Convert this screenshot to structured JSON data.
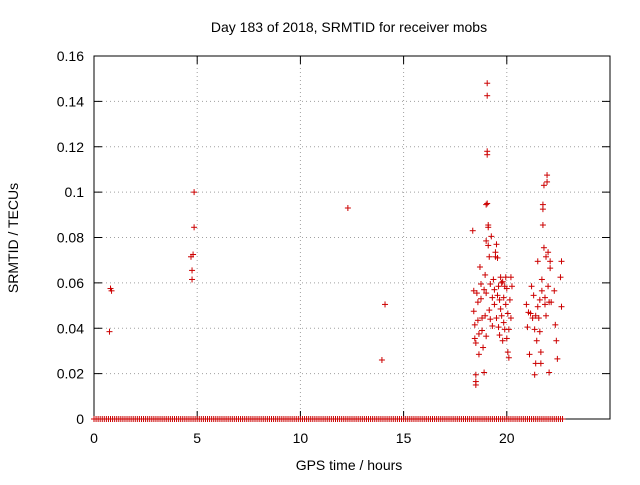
{
  "chart_data": {
    "type": "scatter",
    "title": "Day 183 of 2018, SRMTID for receiver mobs",
    "xlabel": "GPS time / hours",
    "ylabel": "SRMTID / TECUs",
    "xlim": [
      0,
      25
    ],
    "ylim": [
      0,
      0.16
    ],
    "xticks": [
      0,
      5,
      10,
      15,
      20
    ],
    "xtick_labels": [
      "0",
      "5",
      "10",
      "15",
      "20"
    ],
    "yticks": [
      0,
      0.02,
      0.04,
      0.06,
      0.08,
      0.1,
      0.12,
      0.14,
      0.16
    ],
    "ytick_labels": [
      "0",
      "0.02",
      "0.04",
      "0.06",
      "0.08",
      "0.1",
      "0.12",
      "0.14",
      "0.16"
    ],
    "grid": true,
    "marker": "+",
    "color": "#cc0000",
    "zero_baseline": {
      "y": 0,
      "x_start": 0,
      "x_end": 22.7,
      "step": 0.1
    },
    "series": [
      {
        "name": "SRMTID",
        "points": [
          [
            0.75,
            0.0385
          ],
          [
            0.8,
            0.0575
          ],
          [
            0.85,
            0.0565
          ],
          [
            4.7,
            0.0715
          ],
          [
            4.75,
            0.0655
          ],
          [
            4.75,
            0.0615
          ],
          [
            4.8,
            0.0725
          ],
          [
            4.85,
            0.1
          ],
          [
            4.85,
            0.0845
          ],
          [
            12.3,
            0.093
          ],
          [
            13.95,
            0.026
          ],
          [
            14.1,
            0.0505
          ],
          [
            18.35,
            0.083
          ],
          [
            18.4,
            0.0565
          ],
          [
            18.4,
            0.0475
          ],
          [
            18.45,
            0.0415
          ],
          [
            18.45,
            0.0355
          ],
          [
            18.5,
            0.0335
          ],
          [
            18.5,
            0.0195
          ],
          [
            18.5,
            0.0165
          ],
          [
            18.5,
            0.015
          ],
          [
            18.55,
            0.0555
          ],
          [
            18.6,
            0.0515
          ],
          [
            18.6,
            0.0435
          ],
          [
            18.65,
            0.0375
          ],
          [
            18.65,
            0.0285
          ],
          [
            18.7,
            0.067
          ],
          [
            18.75,
            0.0595
          ],
          [
            18.75,
            0.053
          ],
          [
            18.8,
            0.0445
          ],
          [
            18.8,
            0.039
          ],
          [
            18.85,
            0.0315
          ],
          [
            18.9,
            0.0205
          ],
          [
            18.9,
            0.057
          ],
          [
            18.95,
            0.0635
          ],
          [
            18.95,
            0.0455
          ],
          [
            19.0,
            0.0945
          ],
          [
            19.0,
            0.0785
          ],
          [
            19.0,
            0.0555
          ],
          [
            19.0,
            0.0365
          ],
          [
            19.05,
            0.148
          ],
          [
            19.05,
            0.1425
          ],
          [
            19.05,
            0.118
          ],
          [
            19.05,
            0.1165
          ],
          [
            19.05,
            0.095
          ],
          [
            19.1,
            0.0765
          ],
          [
            19.1,
            0.0855
          ],
          [
            19.1,
            0.0845
          ],
          [
            19.15,
            0.0715
          ],
          [
            19.15,
            0.048
          ],
          [
            19.2,
            0.044
          ],
          [
            19.2,
            0.0595
          ],
          [
            19.25,
            0.0805
          ],
          [
            19.3,
            0.0535
          ],
          [
            19.3,
            0.041
          ],
          [
            19.35,
            0.0615
          ],
          [
            19.4,
            0.057
          ],
          [
            19.4,
            0.0505
          ],
          [
            19.45,
            0.0715
          ],
          [
            19.45,
            0.0735
          ],
          [
            19.5,
            0.077
          ],
          [
            19.5,
            0.0445
          ],
          [
            19.55,
            0.0545
          ],
          [
            19.55,
            0.071
          ],
          [
            19.6,
            0.0585
          ],
          [
            19.6,
            0.0405
          ],
          [
            19.65,
            0.0525
          ],
          [
            19.65,
            0.037
          ],
          [
            19.7,
            0.0625
          ],
          [
            19.7,
            0.0485
          ],
          [
            19.75,
            0.06
          ],
          [
            19.75,
            0.0455
          ],
          [
            19.8,
            0.0345
          ],
          [
            19.8,
            0.0605
          ],
          [
            19.85,
            0.0535
          ],
          [
            19.85,
            0.0425
          ],
          [
            19.9,
            0.0585
          ],
          [
            19.9,
            0.0395
          ],
          [
            19.95,
            0.0625
          ],
          [
            19.95,
            0.0505
          ],
          [
            20.0,
            0.0575
          ],
          [
            20.0,
            0.0355
          ],
          [
            20.05,
            0.0465
          ],
          [
            20.05,
            0.0295
          ],
          [
            20.1,
            0.027
          ],
          [
            20.1,
            0.0395
          ],
          [
            20.15,
            0.0525
          ],
          [
            20.2,
            0.0625
          ],
          [
            20.2,
            0.0445
          ],
          [
            20.25,
            0.0585
          ],
          [
            20.95,
            0.0505
          ],
          [
            21.0,
            0.0405
          ],
          [
            21.05,
            0.047
          ],
          [
            21.1,
            0.0285
          ],
          [
            21.15,
            0.0465
          ],
          [
            21.2,
            0.0585
          ],
          [
            21.25,
            0.0445
          ],
          [
            21.3,
            0.0545
          ],
          [
            21.35,
            0.0195
          ],
          [
            21.35,
            0.0395
          ],
          [
            21.4,
            0.0455
          ],
          [
            21.4,
            0.0245
          ],
          [
            21.45,
            0.0345
          ],
          [
            21.5,
            0.0495
          ],
          [
            21.5,
            0.0695
          ],
          [
            21.55,
            0.0445
          ],
          [
            21.6,
            0.0525
          ],
          [
            21.6,
            0.0385
          ],
          [
            21.65,
            0.0295
          ],
          [
            21.65,
            0.0245
          ],
          [
            21.7,
            0.0615
          ],
          [
            21.7,
            0.0565
          ],
          [
            21.75,
            0.0945
          ],
          [
            21.75,
            0.0925
          ],
          [
            21.75,
            0.0855
          ],
          [
            21.8,
            0.103
          ],
          [
            21.8,
            0.0755
          ],
          [
            21.85,
            0.0505
          ],
          [
            21.85,
            0.0535
          ],
          [
            21.9,
            0.0715
          ],
          [
            21.9,
            0.0455
          ],
          [
            21.95,
            0.1075
          ],
          [
            21.95,
            0.1045
          ],
          [
            22.0,
            0.0735
          ],
          [
            22.0,
            0.0585
          ],
          [
            22.05,
            0.0515
          ],
          [
            22.05,
            0.0205
          ],
          [
            22.1,
            0.0665
          ],
          [
            22.1,
            0.0695
          ],
          [
            22.15,
            0.0515
          ],
          [
            22.3,
            0.0565
          ],
          [
            22.35,
            0.0415
          ],
          [
            22.4,
            0.0345
          ],
          [
            22.45,
            0.0265
          ],
          [
            22.6,
            0.0625
          ],
          [
            22.65,
            0.0695
          ],
          [
            22.65,
            0.0495
          ]
        ]
      }
    ]
  }
}
